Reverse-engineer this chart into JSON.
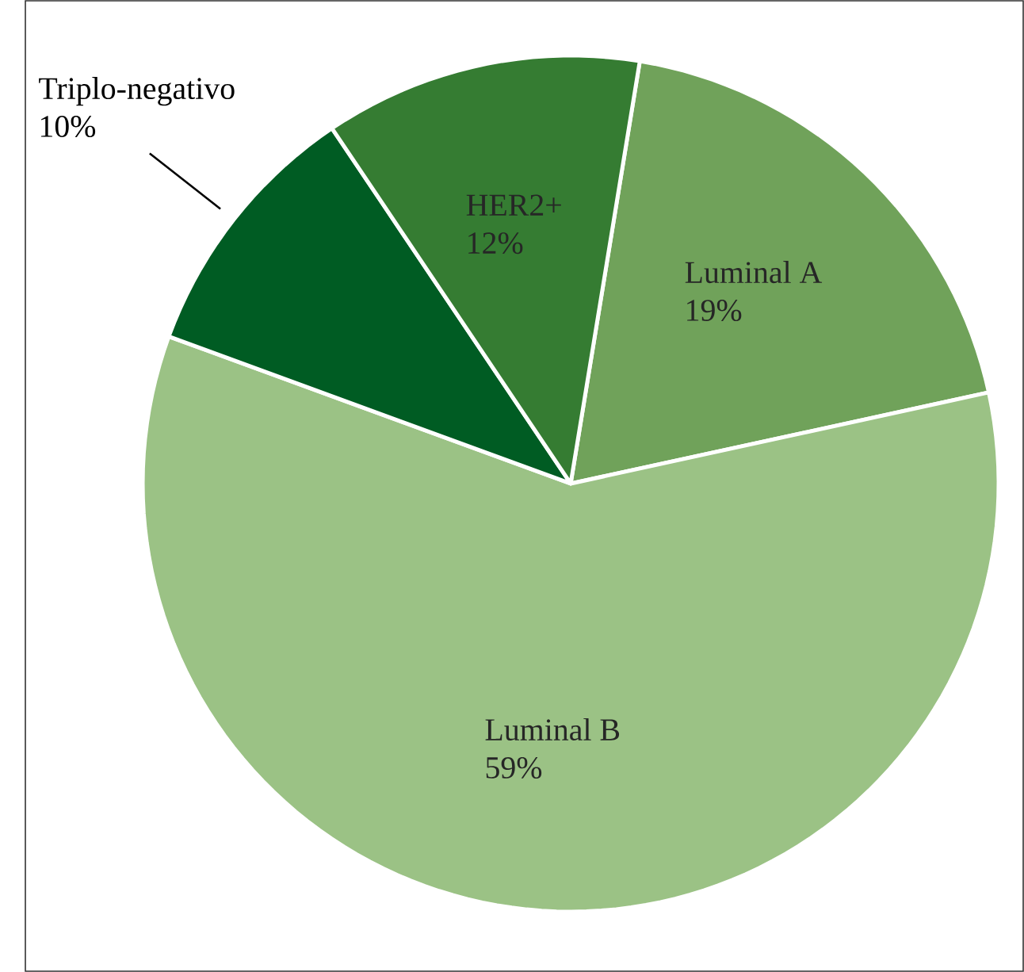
{
  "chart_data": {
    "type": "pie",
    "categories": [
      "Luminal A",
      "Luminal B",
      "Triplo-negativo",
      "HER2+"
    ],
    "values": [
      19,
      59,
      10,
      12
    ],
    "value_labels": [
      "19%",
      "59%",
      "10%",
      "12%"
    ],
    "colors": [
      "#70a25a",
      "#9bc285",
      "#005c23",
      "#357c32"
    ]
  }
}
